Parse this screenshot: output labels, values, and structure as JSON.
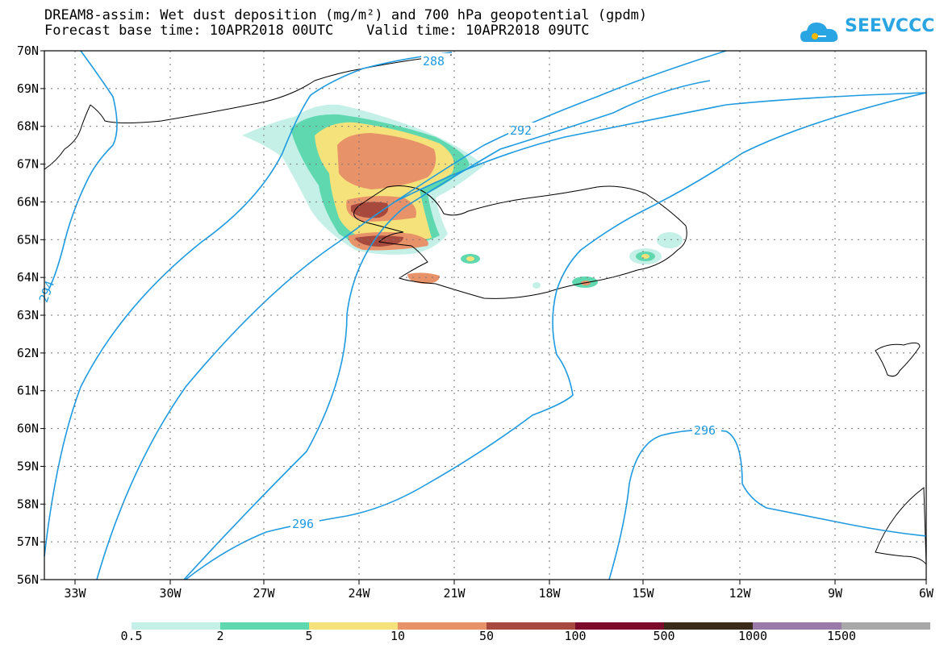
{
  "title_line1": "DREAM8-assim: Wet dust deposition (mg/m²) and 700 hPa geopotential (gpdm)",
  "title_line2": "Forecast base time: 10APR2018 00UTC    Valid time: 10APR2018 09UTC",
  "logo_text": "SEEVCCC",
  "lat_labels": [
    "70N",
    "69N",
    "68N",
    "67N",
    "66N",
    "65N",
    "64N",
    "63N",
    "62N",
    "61N",
    "60N",
    "59N",
    "58N",
    "57N",
    "56N"
  ],
  "lon_labels": [
    "33W",
    "30W",
    "27W",
    "24W",
    "21W",
    "18W",
    "15W",
    "12W",
    "9W",
    "6W"
  ],
  "contour_labels": [
    "288",
    "292",
    "296",
    "296",
    "294"
  ],
  "colorbar": {
    "labels": [
      "0.5",
      "2",
      "5",
      "10",
      "50",
      "100",
      "500",
      "1000",
      "1500"
    ],
    "colors": [
      "#c4f0e8",
      "#5fd8b0",
      "#f5e27a",
      "#e8926a",
      "#a8493e",
      "#7c0a2a",
      "#3a2a1a",
      "#9a7aa8",
      "#a8a8a8"
    ]
  }
}
